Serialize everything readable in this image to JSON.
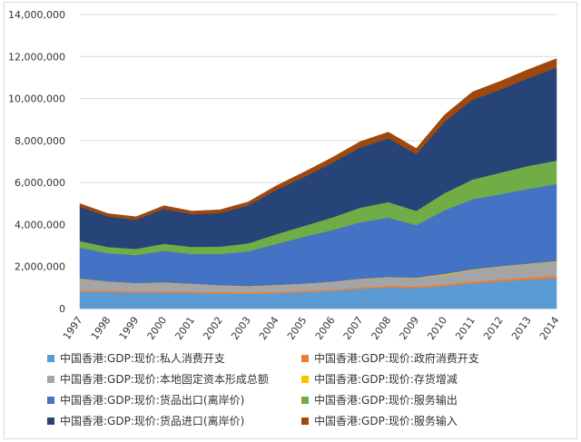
{
  "chart_data": {
    "type": "area",
    "stacked": true,
    "title": "",
    "xlabel": "",
    "ylabel": "",
    "ylim": [
      0,
      14000000
    ],
    "y_ticks": [
      0,
      2000000,
      4000000,
      6000000,
      8000000,
      10000000,
      12000000,
      14000000
    ],
    "y_tick_labels": [
      "0",
      "2,000,000",
      "4,000,000",
      "6,000,000",
      "8,000,000",
      "10,000,000",
      "12,000,000",
      "14,000,000"
    ],
    "grid": true,
    "legend_position": "bottom",
    "x": [
      "1997",
      "1998",
      "1999",
      "2000",
      "2001",
      "2002",
      "2003",
      "2004",
      "2005",
      "2006",
      "2007",
      "2008",
      "2009",
      "2010",
      "2011",
      "2012",
      "2013",
      "2014"
    ],
    "series": [
      {
        "name": "中国香港:GDP:现价:私人消费开支",
        "color": "#5b9bd5",
        "values": [
          800000,
          780000,
          760000,
          760000,
          740000,
          720000,
          700000,
          730000,
          780000,
          840000,
          940000,
          1000000,
          980000,
          1070000,
          1200000,
          1300000,
          1380000,
          1450000
        ]
      },
      {
        "name": "中国香港:GDP:现价:政府消费开支",
        "color": "#ed7d31",
        "values": [
          60000,
          65000,
          65000,
          65000,
          65000,
          65000,
          63000,
          62000,
          62000,
          63000,
          66000,
          70000,
          75000,
          80000,
          86000,
          93000,
          100000,
          108000
        ]
      },
      {
        "name": "中国香港:GDP:现价:本地固定资本形成总额",
        "color": "#a5a5a5",
        "values": [
          550000,
          440000,
          380000,
          400000,
          380000,
          320000,
          300000,
          320000,
          340000,
          360000,
          400000,
          420000,
          400000,
          450000,
          550000,
          600000,
          640000,
          670000
        ]
      },
      {
        "name": "中国香港:GDP:现价:存货增减",
        "color": "#ffc000",
        "values": [
          20000,
          10000,
          10000,
          25000,
          5000,
          10000,
          15000,
          15000,
          10000,
          15000,
          15000,
          15000,
          20000,
          45000,
          30000,
          20000,
          25000,
          30000
        ]
      },
      {
        "name": "中国香港:GDP:现价:货品出口(离岸价)",
        "color": "#4472c4",
        "values": [
          1470000,
          1340000,
          1330000,
          1500000,
          1410000,
          1480000,
          1650000,
          1950000,
          2230000,
          2460000,
          2690000,
          2830000,
          2500000,
          3030000,
          3340000,
          3430000,
          3560000,
          3670000
        ]
      },
      {
        "name": "中国香港:GDP:现价:服务输出",
        "color": "#70ad47",
        "values": [
          320000,
          300000,
          300000,
          340000,
          340000,
          360000,
          380000,
          460000,
          520000,
          600000,
          700000,
          740000,
          680000,
          820000,
          940000,
          1030000,
          1090000,
          1120000
        ]
      },
      {
        "name": "中国香港:GDP:现价:货品进口(离岸价)",
        "color": "#264478",
        "values": [
          1630000,
          1450000,
          1390000,
          1660000,
          1550000,
          1600000,
          1800000,
          2110000,
          2330000,
          2600000,
          2860000,
          3030000,
          2700000,
          3390000,
          3800000,
          3950000,
          4180000,
          4420000
        ]
      },
      {
        "name": "中国香港:GDP:现价:服务输入",
        "color": "#9e480e",
        "values": [
          150000,
          140000,
          140000,
          150000,
          150000,
          150000,
          170000,
          200000,
          230000,
          250000,
          280000,
          300000,
          270000,
          330000,
          370000,
          400000,
          410000,
          430000
        ]
      }
    ]
  }
}
